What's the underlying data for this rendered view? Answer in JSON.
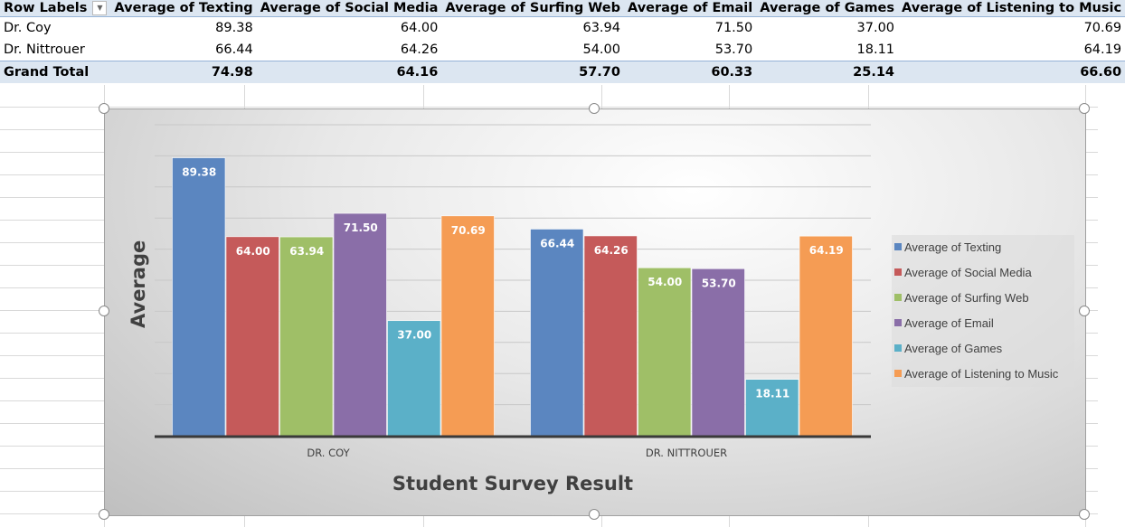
{
  "pivot": {
    "headers": [
      "Row Labels",
      "Average of Texting",
      "Average of Social Media",
      "Average of Surfing Web",
      "Average of Email",
      "Average of Games",
      "Average of Listening to Music"
    ],
    "rows": [
      {
        "label": "Dr. Coy",
        "values": [
          "89.38",
          "64.00",
          "63.94",
          "71.50",
          "37.00",
          "70.69"
        ]
      },
      {
        "label": "Dr. Nittrouer",
        "values": [
          "66.44",
          "64.26",
          "54.00",
          "53.70",
          "18.11",
          "64.19"
        ]
      }
    ],
    "total": {
      "label": "Grand Total",
      "values": [
        "74.98",
        "64.16",
        "57.70",
        "60.33",
        "25.14",
        "66.60"
      ]
    }
  },
  "chart_data": {
    "type": "bar",
    "title": "",
    "xlabel": "Student Survey Result",
    "ylabel": "Average",
    "ylim": [
      0,
      100
    ],
    "grid": true,
    "legend": "right",
    "categories": [
      "DR. COY",
      "DR. NITTROUER"
    ],
    "series": [
      {
        "name": "Average of Texting",
        "values": [
          89.38,
          66.44
        ],
        "color": "#5b86c0"
      },
      {
        "name": "Average of Social Media",
        "values": [
          64.0,
          64.26
        ],
        "color": "#c55a5a"
      },
      {
        "name": "Average of Surfing Web",
        "values": [
          63.94,
          54.0
        ],
        "color": "#9fbf67"
      },
      {
        "name": "Average of Email",
        "values": [
          71.5,
          53.7
        ],
        "color": "#8a6ea8"
      },
      {
        "name": "Average of Games",
        "values": [
          37.0,
          18.11
        ],
        "color": "#5bb0c8"
      },
      {
        "name": "Average of Listening to Music",
        "values": [
          70.69,
          64.19
        ],
        "color": "#f59c54"
      }
    ]
  }
}
